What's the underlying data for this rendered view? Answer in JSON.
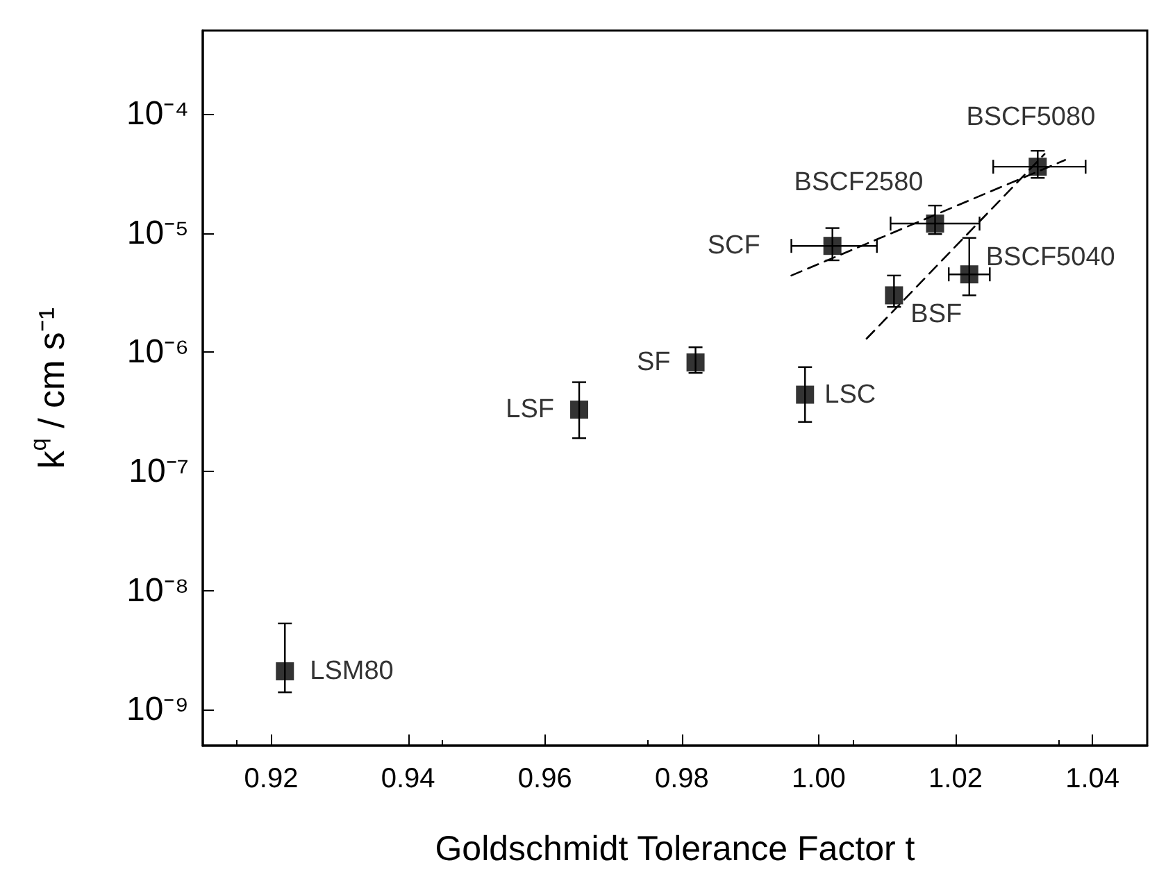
{
  "chart_data": {
    "type": "scatter",
    "xlabel": "Goldschmidt Tolerance Factor t",
    "ylabel": "k$^{q}$ / cm s⁻¹",
    "x": [
      0.922,
      0.965,
      0.982,
      0.998,
      1.002,
      1.017,
      1.011,
      1.022,
      1.032
    ],
    "values": [
      2.1e-09,
      3.3e-07,
      8.2e-07,
      4.4e-07,
      7.8e-06,
      1.2e-05,
      3e-06,
      4.5e-06,
      3.6e-05
    ],
    "errors": [
      [
        1.4e-09,
        5.3e-09
      ],
      [
        1.9e-07,
        5.6e-07
      ],
      [
        6.7e-07,
        1.1e-06
      ],
      [
        2.6e-07,
        7.5e-07
      ],
      [
        5.9e-06,
        1.1e-05
      ],
      [
        9.8e-06,
        1.7e-05
      ],
      [
        2.4e-06,
        4.4e-06
      ],
      [
        3e-06,
        9.1e-06
      ],
      [
        2.9e-05,
        4.9e-05
      ]
    ],
    "xerrors": [
      null,
      null,
      null,
      null,
      [
        0.996,
        1.0085
      ],
      [
        1.0105,
        1.0235
      ],
      null,
      [
        1.019,
        1.025
      ],
      [
        1.0255,
        1.039
      ]
    ],
    "color": "#000000",
    "marker": "square",
    "series": [
      {
        "type": "line",
        "line_style": "dashed",
        "marker": "none",
        "color": "#000000",
        "x": [
          0.996,
          1.036
        ],
        "values": [
          4.4e-06,
          4.1e-05
        ]
      },
      {
        "type": "line",
        "line_style": "dashed",
        "marker": "none",
        "color": "#000000",
        "x": [
          1.007,
          1.033
        ],
        "values": [
          1.3e-06,
          4.6e-05
        ]
      }
    ],
    "annotations": [
      {
        "text": "LSM80",
        "x": 0.922,
        "y": 2.1e-09
      },
      {
        "text": "LSF",
        "x": 0.965,
        "y": 3.3e-07
      },
      {
        "text": "SF",
        "x": 0.982,
        "y": 8.2e-07
      },
      {
        "text": "LSC",
        "x": 0.998,
        "y": 4.4e-07
      },
      {
        "text": "SCF",
        "x": 1.002,
        "y": 7.8e-06
      },
      {
        "text": "BSCF2580",
        "x": 1.017,
        "y": 1.2e-05
      },
      {
        "text": "BSF",
        "x": 1.011,
        "y": 3e-06
      },
      {
        "text": "BSCF5040",
        "x": 1.022,
        "y": 4.5e-06
      },
      {
        "text": "BSCF5080",
        "x": 1.032,
        "y": 3.6e-05
      }
    ],
    "log": "y",
    "xlim": [
      0.91,
      1.048
    ],
    "ylim": [
      5e-10,
      0.0005
    ],
    "xticks": [
      {
        "value": 0.92,
        "label": "0.92"
      },
      {
        "value": 0.94,
        "label": "0.94"
      },
      {
        "value": 0.96,
        "label": "0.96"
      },
      {
        "value": 0.98,
        "label": "0.98"
      },
      {
        "value": 1.0,
        "label": "1.00"
      },
      {
        "value": 1.02,
        "label": "1.02"
      },
      {
        "value": 1.04,
        "label": "1.04"
      }
    ],
    "yticks": [
      {
        "value": 1e-09,
        "label": "10⁻⁹"
      },
      {
        "value": 1e-08,
        "label": "10⁻⁸"
      },
      {
        "value": 1e-07,
        "label": "10⁻⁷"
      },
      {
        "value": 1e-06,
        "label": "10⁻⁶"
      },
      {
        "value": 1e-05,
        "label": "10⁻⁵"
      },
      {
        "value": 0.0001,
        "label": "10⁻⁴"
      }
    ],
    "grid": false
  }
}
